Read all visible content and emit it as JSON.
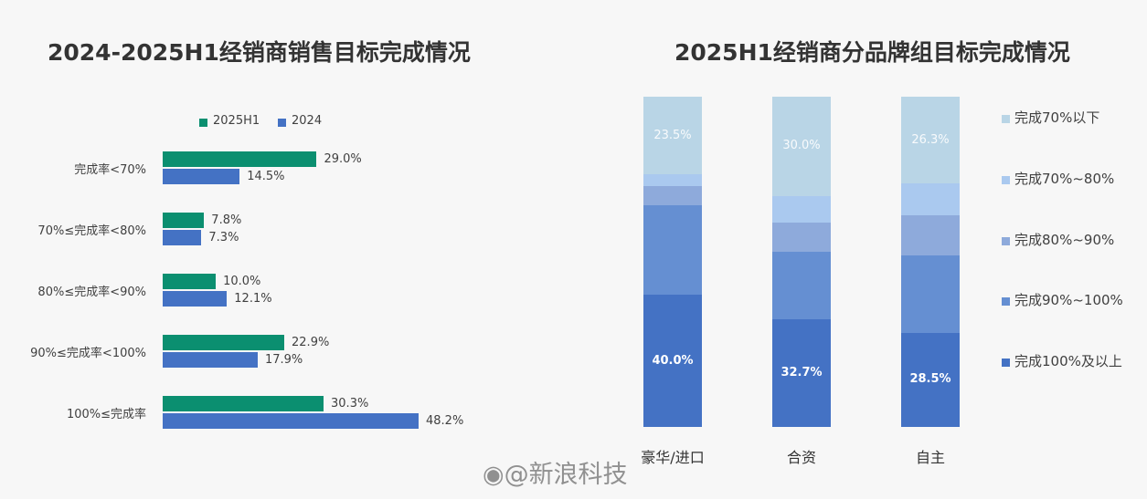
{
  "chart_data": [
    {
      "type": "bar",
      "orientation": "horizontal",
      "title": "2024-2025H1经销商销售目标完成情况",
      "categories": [
        "完成率<70%",
        "70%≤完成率<80%",
        "80%≤完成率<90%",
        "90%≤完成率<100%",
        "100%≤完成率"
      ],
      "series": [
        {
          "name": "2025H1",
          "color": "#0b8f70",
          "values": [
            29.0,
            7.8,
            10.0,
            22.9,
            30.3
          ],
          "labels": [
            "29.0%",
            "7.8%",
            "10.0%",
            "22.9%",
            "30.3%"
          ]
        },
        {
          "name": "2024",
          "color": "#4472c4",
          "values": [
            14.5,
            7.3,
            12.1,
            17.9,
            48.2
          ],
          "labels": [
            "14.5%",
            "7.3%",
            "12.1%",
            "17.9%",
            "48.2%"
          ]
        }
      ],
      "legend": "top",
      "grid": false
    },
    {
      "type": "bar",
      "stacked": true,
      "title": "2025H1经销商分品牌组目标完成情况",
      "categories": [
        "豪华/进口",
        "合资",
        "自主"
      ],
      "series": [
        {
          "name": "完成100%及以上",
          "color": "#4472c4",
          "values": [
            40.0,
            32.7,
            28.5
          ],
          "labels": [
            "40.0%",
            "32.7%",
            "28.5%"
          ]
        },
        {
          "name": "完成90%~100%",
          "color": "#658fd2",
          "values": [
            27.0,
            20.3,
            23.4
          ],
          "labels": [
            "",
            "",
            ""
          ]
        },
        {
          "name": "完成80%~90%",
          "color": "#8eaadb",
          "values": [
            6.0,
            9.0,
            12.3
          ],
          "labels": [
            "",
            "",
            ""
          ]
        },
        {
          "name": "完成70%~80%",
          "color": "#aac9ef",
          "values": [
            3.5,
            8.0,
            9.5
          ],
          "labels": [
            "",
            "",
            ""
          ]
        },
        {
          "name": "完成70%以下",
          "color": "#b9d5e6",
          "values": [
            23.5,
            30.0,
            26.3
          ],
          "labels": [
            "23.5%",
            "30.0%",
            "26.3%"
          ]
        }
      ],
      "legend": "right",
      "ylim": [
        0,
        100
      ],
      "grid": false
    }
  ],
  "watermark": "@新浪科技"
}
